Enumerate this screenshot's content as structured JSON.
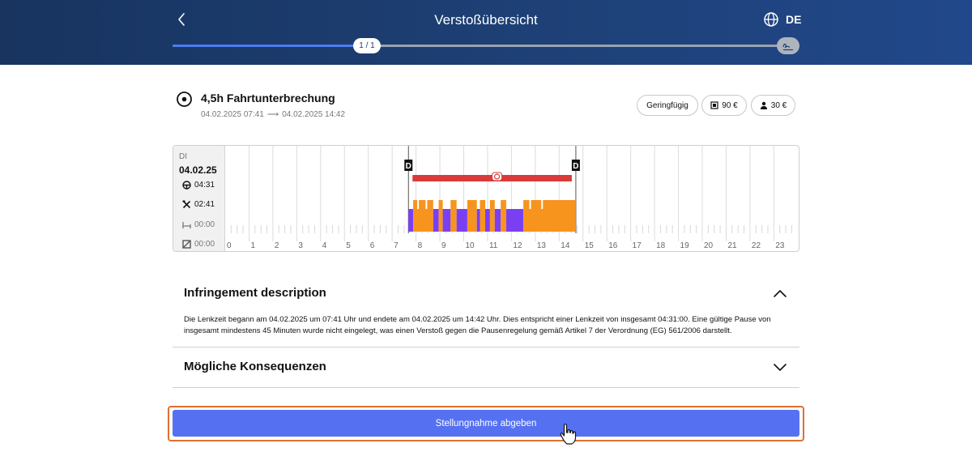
{
  "header": {
    "title": "Verstoßübersicht",
    "language": "DE",
    "progress_label": "1 / 1",
    "progress_fraction": 0.31
  },
  "infringement": {
    "title": "4,5h Fahrtunterbrechung",
    "start": "04.02.2025 07:41",
    "arrow": "⟶",
    "end": "04.02.2025 14:42",
    "chips": {
      "severity": "Geringfügig",
      "company_fine": "90 €",
      "driver_fine": "30 €"
    }
  },
  "timeline": {
    "day": "DI",
    "date": "04.02.25",
    "driving": "04:31",
    "work": "02:41",
    "rest": "00:00",
    "unknown": "00:00",
    "marker_start": "D",
    "marker_end": "D",
    "hours": [
      "0",
      "1",
      "2",
      "3",
      "4",
      "5",
      "6",
      "7",
      "8",
      "9",
      "10",
      "11",
      "12",
      "13",
      "14",
      "15",
      "16",
      "17",
      "18",
      "19",
      "20",
      "21",
      "22",
      "23"
    ],
    "colors": {
      "driving": "#7b3ff2",
      "work": "#f7941d",
      "violation": "#d93a3a"
    }
  },
  "description": {
    "title": "Infringement description",
    "text": "Die Lenkzeit begann am 04.02.2025 um 07:41 Uhr und endete am 04.02.2025 um 14:42 Uhr. Dies entspricht einer Lenkzeit von insgesamt 04:31:00. Eine gültige Pause von insgesamt mindestens 45 Minuten wurde nicht eingelegt, was einen Verstoß gegen die Pausenregelung gemäß Artikel 7 der Verordnung (EG) 561/2006 darstellt."
  },
  "consequences": {
    "title": "Mögliche Konsequenzen"
  },
  "submit": {
    "label": "Stellungnahme abgeben"
  }
}
